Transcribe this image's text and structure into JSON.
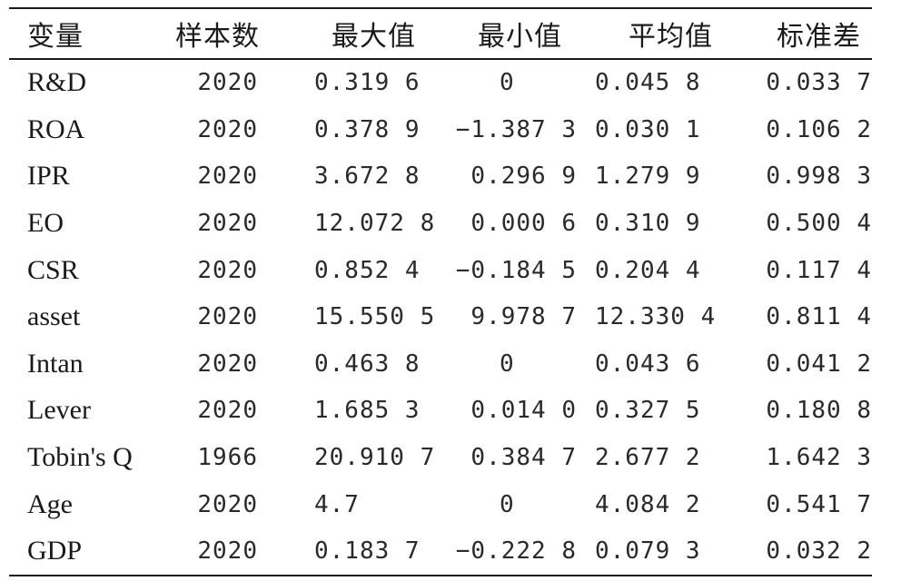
{
  "table": {
    "headers": [
      "变量",
      "样本数",
      "最大值",
      "最小值",
      "平均值",
      "标准差"
    ],
    "rows": [
      {
        "var": "R&D",
        "n": "2020",
        "max": "0.319 6",
        "min": "0",
        "mean": "0.045 8",
        "sd": "0.033 7"
      },
      {
        "var": "ROA",
        "n": "2020",
        "max": "0.378 9",
        "min": "−1.387 3",
        "mean": "0.030 1",
        "sd": "0.106 2"
      },
      {
        "var": "IPR",
        "n": "2020",
        "max": "3.672 8",
        "min": "0.296 9",
        "mean": "1.279 9",
        "sd": "0.998 3"
      },
      {
        "var": "EO",
        "n": "2020",
        "max": "12.072 8",
        "min": "0.000 6",
        "mean": "0.310 9",
        "sd": "0.500 4"
      },
      {
        "var": "CSR",
        "n": "2020",
        "max": "0.852 4",
        "min": "−0.184 5",
        "mean": "0.204 4",
        "sd": "0.117 4"
      },
      {
        "var": "asset",
        "n": "2020",
        "max": "15.550 5",
        "min": "9.978 7",
        "mean": "12.330 4",
        "sd": "0.811 4"
      },
      {
        "var": "Intan",
        "n": "2020",
        "max": "0.463 8",
        "min": "0",
        "mean": "0.043 6",
        "sd": "0.041 2"
      },
      {
        "var": "Lever",
        "n": "2020",
        "max": "1.685 3",
        "min": "0.014 0",
        "mean": "0.327 5",
        "sd": "0.180 8"
      },
      {
        "var": "Tobin's Q",
        "n": "1966",
        "max": "20.910 7",
        "min": "0.384 7",
        "mean": "2.677 2",
        "sd": "1.642 3"
      },
      {
        "var": "Age",
        "n": "2020",
        "max": "4.7",
        "min": "0",
        "mean": "4.084 2",
        "sd": "0.541 7"
      },
      {
        "var": "GDP",
        "n": "2020",
        "max": "0.183 7",
        "min": "−0.222 8",
        "mean": "0.079 3",
        "sd": "0.032 2"
      }
    ]
  }
}
